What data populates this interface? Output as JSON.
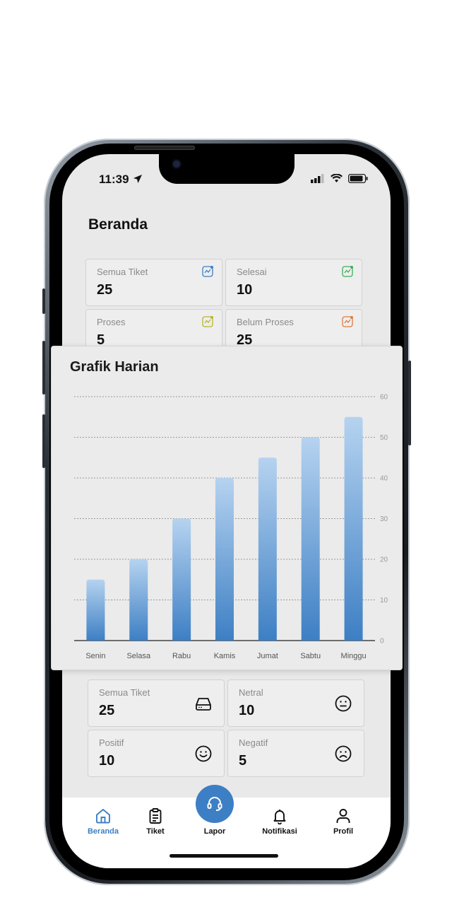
{
  "status": {
    "time": "11:39"
  },
  "page": {
    "title": "Beranda"
  },
  "tickets": [
    {
      "label": "Semua Tiket",
      "value": "25",
      "icon": "trend-icon",
      "color": "#3d7fc4"
    },
    {
      "label": "Selesai",
      "value": "10",
      "icon": "trend-icon",
      "color": "#3fae5a"
    },
    {
      "label": "Proses",
      "value": "5",
      "icon": "trend-icon",
      "color": "#b8b52a"
    },
    {
      "label": "Belum Proses",
      "value": "25",
      "icon": "trend-icon",
      "color": "#e07a3e"
    }
  ],
  "chart_data": {
    "type": "bar",
    "title": "Grafik Harian",
    "categories": [
      "Senin",
      "Selasa",
      "Rabu",
      "Kamis",
      "Jumat",
      "Sabtu",
      "Minggu"
    ],
    "values": [
      15,
      20,
      30,
      40,
      45,
      50,
      55
    ],
    "ylim": [
      0,
      60
    ],
    "yticks": [
      0,
      10,
      20,
      30,
      40,
      50,
      60
    ],
    "grid": true,
    "y_axis_side": "right",
    "bar_color_top": "#b6d3f0",
    "bar_color_bottom": "#3d7fc4"
  },
  "sentiment": [
    {
      "label": "Semua Tiket",
      "value": "25",
      "icon": "inbox-icon"
    },
    {
      "label": "Netral",
      "value": "10",
      "icon": "neutral-face-icon"
    },
    {
      "label": "Positif",
      "value": "10",
      "icon": "smile-face-icon"
    },
    {
      "label": "Negatif",
      "value": "5",
      "icon": "sad-face-icon"
    }
  ],
  "nav": {
    "items": [
      {
        "label": "Beranda",
        "icon": "home-icon",
        "active": true
      },
      {
        "label": "Tiket",
        "icon": "clipboard-icon",
        "active": false
      },
      {
        "label": "Lapor",
        "icon": "headset-icon",
        "active": false
      },
      {
        "label": "Notifikasi",
        "icon": "bell-icon",
        "active": false
      },
      {
        "label": "Profil",
        "icon": "user-icon",
        "active": false
      }
    ],
    "active_color": "#3d7fc4"
  }
}
